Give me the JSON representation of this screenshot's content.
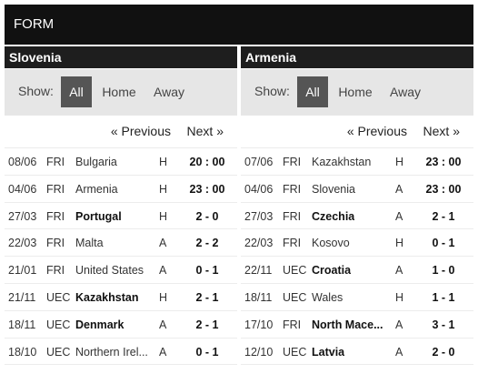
{
  "header": {
    "title": "FORM"
  },
  "show_label": "Show:",
  "filters": [
    "All",
    "Home",
    "Away"
  ],
  "pager": {
    "previous": "« Previous",
    "next": "Next »"
  },
  "left": {
    "team": "Slovenia",
    "matches": [
      {
        "date": "08/06",
        "comp": "FRI",
        "opponent": "Bulgaria",
        "bold": false,
        "venue": "H",
        "result": "20 : 00"
      },
      {
        "date": "04/06",
        "comp": "FRI",
        "opponent": "Armenia",
        "bold": false,
        "venue": "H",
        "result": "23 : 00"
      },
      {
        "date": "27/03",
        "comp": "FRI",
        "opponent": "Portugal",
        "bold": true,
        "venue": "H",
        "result": "2 - 0"
      },
      {
        "date": "22/03",
        "comp": "FRI",
        "opponent": "Malta",
        "bold": false,
        "venue": "A",
        "result": "2 - 2"
      },
      {
        "date": "21/01",
        "comp": "FRI",
        "opponent": "United States",
        "bold": false,
        "venue": "A",
        "result": "0 - 1"
      },
      {
        "date": "21/11",
        "comp": "UEC",
        "opponent": "Kazakhstan",
        "bold": true,
        "venue": "H",
        "result": "2 - 1"
      },
      {
        "date": "18/11",
        "comp": "UEC",
        "opponent": "Denmark",
        "bold": true,
        "venue": "A",
        "result": "2 - 1"
      },
      {
        "date": "18/10",
        "comp": "UEC",
        "opponent": "Northern Irel...",
        "bold": false,
        "venue": "A",
        "result": "0 - 1"
      }
    ]
  },
  "right": {
    "team": "Armenia",
    "matches": [
      {
        "date": "07/06",
        "comp": "FRI",
        "opponent": "Kazakhstan",
        "bold": false,
        "venue": "H",
        "result": "23 : 00"
      },
      {
        "date": "04/06",
        "comp": "FRI",
        "opponent": "Slovenia",
        "bold": false,
        "venue": "A",
        "result": "23 : 00"
      },
      {
        "date": "27/03",
        "comp": "FRI",
        "opponent": "Czechia",
        "bold": true,
        "venue": "A",
        "result": "2 - 1"
      },
      {
        "date": "22/03",
        "comp": "FRI",
        "opponent": "Kosovo",
        "bold": false,
        "venue": "H",
        "result": "0 - 1"
      },
      {
        "date": "22/11",
        "comp": "UEC",
        "opponent": "Croatia",
        "bold": true,
        "venue": "A",
        "result": "1 - 0"
      },
      {
        "date": "18/11",
        "comp": "UEC",
        "opponent": "Wales",
        "bold": false,
        "venue": "H",
        "result": "1 - 1"
      },
      {
        "date": "17/10",
        "comp": "FRI",
        "opponent": "North Mace...",
        "bold": true,
        "venue": "A",
        "result": "3 - 1"
      },
      {
        "date": "12/10",
        "comp": "UEC",
        "opponent": "Latvia",
        "bold": true,
        "venue": "A",
        "result": "2 - 0"
      }
    ]
  }
}
